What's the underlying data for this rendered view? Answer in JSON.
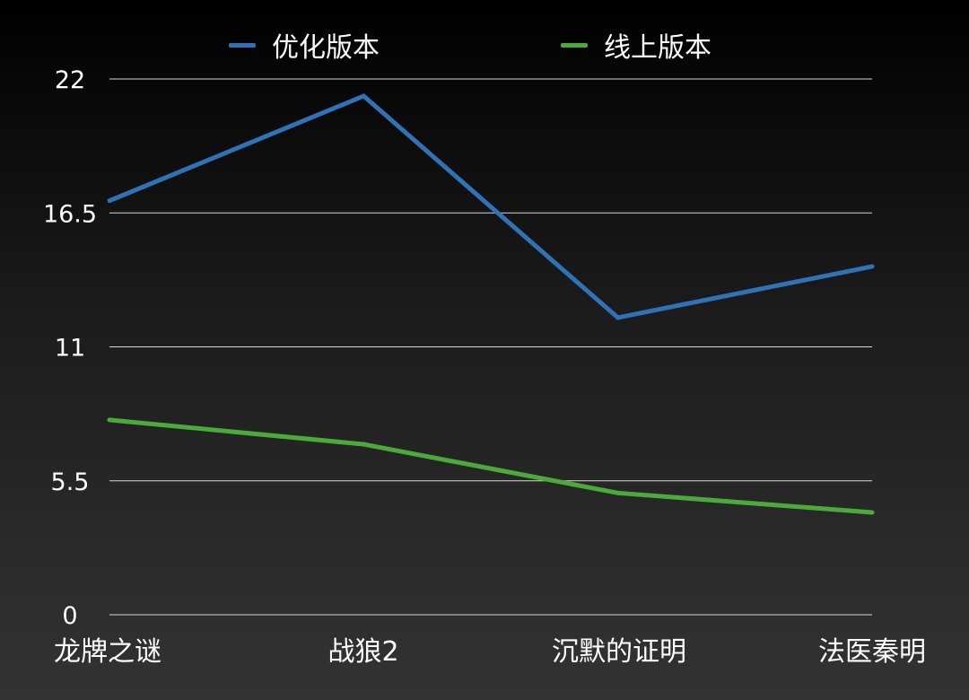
{
  "chart_data": {
    "type": "line",
    "categories": [
      "龙牌之谜",
      "战狼2",
      "沉默的证明",
      "法医秦明"
    ],
    "series": [
      {
        "name": "优化版本",
        "color": "#2f72b6",
        "values": [
          17.0,
          21.3,
          12.2,
          14.3
        ]
      },
      {
        "name": "线上版本",
        "color": "#4aab3a",
        "values": [
          8.0,
          7.0,
          5.0,
          4.2
        ]
      }
    ],
    "y_ticks": [
      "0",
      "5.5",
      "11",
      "16.5",
      "22"
    ],
    "ylim": [
      0,
      22
    ],
    "grid": true,
    "legend_position": "top-center",
    "title": "",
    "xlabel": "",
    "ylabel": ""
  }
}
